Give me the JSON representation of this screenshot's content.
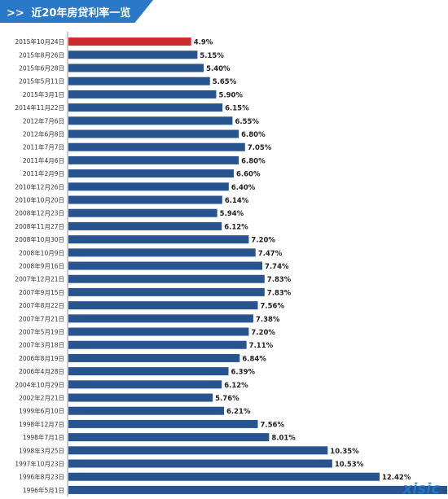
{
  "title": "近20年房贷利率一览",
  "title_prefix": ">>",
  "watermark": "xisic",
  "colors": {
    "banner": "#2a78c8",
    "bar_normal": "#27538e",
    "bar_highlight": "#cc2c2c",
    "label": "#333333",
    "value": "#222222"
  },
  "chart_data": {
    "type": "bar",
    "orientation": "horizontal",
    "title": "近20年房贷利率一览",
    "highlight_index": 0,
    "grid": false,
    "categories": [
      "2015年10月24日",
      "2015年8月26日",
      "2015年6月28日",
      "2015年5月11日",
      "2015年3月1日",
      "2014年11月22日",
      "2012年7月6日",
      "2012年6月8日",
      "2011年7月7日",
      "2011年4月6日",
      "2011年2月9日",
      "2010年12月26日",
      "2010年10月20日",
      "2008年12月23日",
      "2008年11月27日",
      "2008年10月30日",
      "2008年10月9日",
      "2008年9月16日",
      "2007年12月21日",
      "2007年9月15日",
      "2007年8月22日",
      "2007年7月21日",
      "2007年5月19日",
      "2007年3月18日",
      "2006年8月19日",
      "2006年4月28日",
      "2004年10月29日",
      "2002年2月21日",
      "1999年6月10日",
      "1998年12月7日",
      "1998年7月1日",
      "1998年3月25日",
      "1997年10月23日",
      "1996年8月23日",
      "1996年5月1日"
    ],
    "values": [
      4.9,
      5.15,
      5.4,
      5.65,
      5.9,
      6.15,
      6.55,
      6.8,
      7.05,
      6.8,
      6.6,
      6.4,
      6.14,
      5.94,
      6.12,
      7.2,
      7.47,
      7.74,
      7.83,
      7.83,
      7.56,
      7.38,
      7.2,
      7.11,
      6.84,
      6.39,
      6.12,
      5.76,
      6.21,
      7.56,
      8.01,
      10.35,
      10.53,
      12.42,
      15.12
    ],
    "value_labels": [
      "4.9%",
      "5.15%",
      "5.40%",
      "5.65%",
      "5.90%",
      "6.15%",
      "6.55%",
      "6.80%",
      "7.05%",
      "6.80%",
      "6.60%",
      "6.40%",
      "6.14%",
      "5.94%",
      "6.12%",
      "7.20%",
      "7.47%",
      "7.74%",
      "7.83%",
      "7.83%",
      "7.56%",
      "7.38%",
      "7.20%",
      "7.11%",
      "6.84%",
      "6.39%",
      "6.12%",
      "5.76%",
      "6.21%",
      "7.56%",
      "8.01%",
      "10.35%",
      "10.53%",
      "12.42%",
      ""
    ],
    "unit": "%",
    "xlim": [
      0,
      15.12
    ]
  }
}
